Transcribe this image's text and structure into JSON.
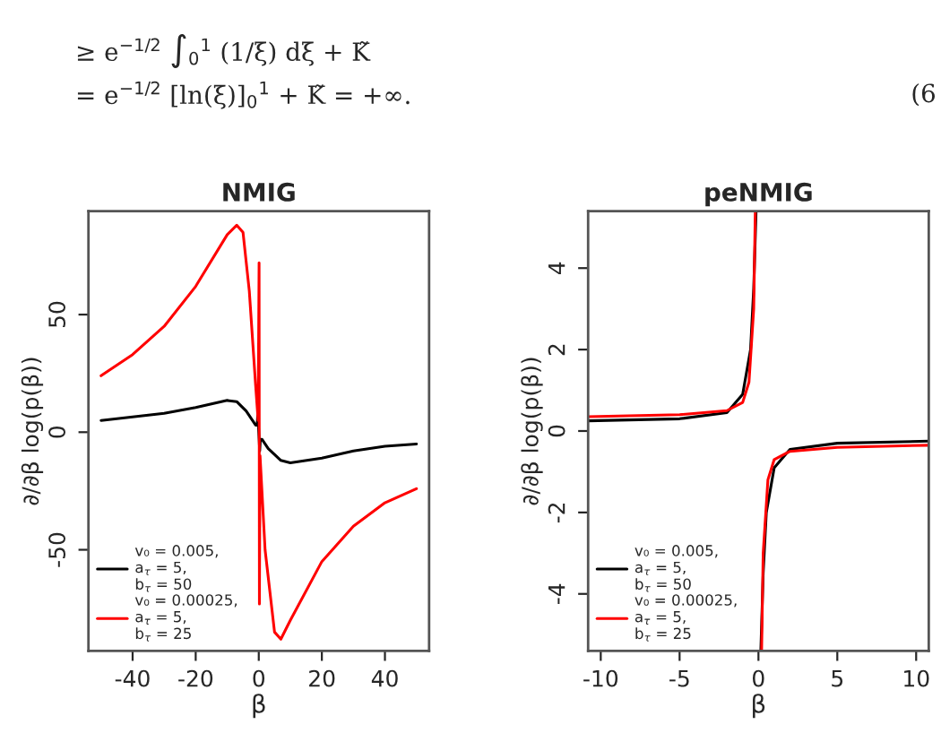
{
  "chart_data": [
    {
      "type": "line",
      "title": "NMIG",
      "xlabel": "β",
      "ylabel": "∂/∂β log(p(β))",
      "annotations": [
        "≥ e$^{−1/2}$ ∫$_{0}$$^{1}$ (1/ξ) dξ + K̃",
        "= e$^{−1/2}$ [ln(ξ)]$_{0}$$^{1}$ + K̃ = +∞.",
        "(6"
      ],
      "xlim": [
        -54,
        54
      ],
      "ylim": [
        -93,
        94
      ],
      "xticks": [
        -40,
        -20,
        0,
        20,
        40
      ],
      "yticks": [
        -50,
        0,
        50
      ],
      "grid": false,
      "legend": "bottom left",
      "line_style": "solid",
      "marker": "none",
      "series": [
        {
          "name": "v₀ = 0.005,\na$_{τ}$ = 5,\nb$_{τ}$ = 50",
          "color": "#000000",
          "x": [
            -50,
            -40,
            -30,
            -20,
            -10,
            -7,
            -4,
            -2,
            -1,
            -0.5,
            -0.3,
            0.3,
            0.5,
            1,
            3,
            7,
            10,
            20,
            30,
            40,
            50
          ],
          "values": [
            5,
            6.5,
            8,
            10.5,
            13.5,
            13,
            9,
            5,
            3,
            3,
            8,
            -8,
            -3,
            -3,
            -7,
            -12,
            -13,
            -11,
            -8,
            -6,
            -5
          ]
        },
        {
          "name": "v₀ = 0.00025,\na$_{τ}$ = 5,\nb$_{τ}$ = 25",
          "color": "#ff0000",
          "x": [
            -50,
            -40,
            -30,
            -20,
            -10,
            -7,
            -5,
            -3,
            -1,
            -0.2,
            0.1,
            0.2,
            0.4,
            2,
            5,
            7,
            10,
            20,
            30,
            40,
            50
          ],
          "values": [
            24,
            33,
            45,
            62,
            84,
            88,
            85,
            60,
            20,
            5,
            72,
            -73,
            -10,
            -50,
            -85,
            -88,
            -80,
            -55,
            -40,
            -30,
            -24
          ]
        }
      ]
    },
    {
      "type": "line",
      "title": "peNMIG",
      "xlabel": "β",
      "ylabel": "∂/∂β log(p(β))",
      "xlim": [
        -10.8,
        10.8
      ],
      "ylim": [
        -5.4,
        5.4
      ],
      "xticks": [
        -10,
        -5,
        0,
        5,
        10
      ],
      "yticks": [
        -4,
        -2,
        0,
        2,
        4
      ],
      "grid": false,
      "legend": "bottom left",
      "line_style": "solid",
      "marker": "none",
      "series": [
        {
          "name": "v₀ = 0.005,\na$_{τ}$ = 5,\nb$_{τ}$ = 50",
          "color": "#000000",
          "x": [
            -10.8,
            -5,
            -2,
            -1,
            -0.5,
            -0.3,
            -0.15,
            0,
            0.15,
            0.3,
            0.5,
            1,
            2,
            5,
            10.8
          ],
          "values": [
            0.25,
            0.3,
            0.45,
            0.9,
            2.0,
            3.5,
            5.4,
            null,
            -5.4,
            -3.5,
            -2.0,
            -0.9,
            -0.45,
            -0.3,
            -0.25
          ]
        },
        {
          "name": "v₀ = 0.00025,\na$_{τ}$ = 5,\nb$_{τ}$ = 25",
          "color": "#ff0000",
          "x": [
            -10.8,
            -5,
            -2,
            -1,
            -0.6,
            -0.3,
            -0.2,
            0,
            0.2,
            0.3,
            0.6,
            1,
            2,
            5,
            10.8
          ],
          "values": [
            0.35,
            0.4,
            0.5,
            0.7,
            1.2,
            3.0,
            5.4,
            null,
            -5.4,
            -3.0,
            -1.2,
            -0.7,
            -0.5,
            -0.4,
            -0.35
          ]
        }
      ]
    }
  ]
}
